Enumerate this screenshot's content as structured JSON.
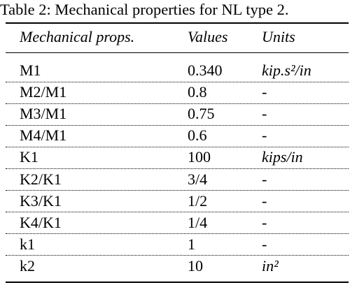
{
  "caption": "Table 2: Mechanical properties for NL type 2.",
  "table": {
    "header": [
      "Mechanical props.",
      "Values",
      "Units"
    ],
    "rows": [
      [
        "M1",
        "0.340",
        "kip.s²/in"
      ],
      [
        "M2/M1",
        "0.8",
        "-"
      ],
      [
        "M3/M1",
        "0.75",
        "-"
      ],
      [
        "M4/M1",
        "0.6",
        "-"
      ],
      [
        "K1",
        "100",
        "kips/in"
      ],
      [
        "K2/K1",
        "3/4",
        "-"
      ],
      [
        "K3/K1",
        "1/2",
        "-"
      ],
      [
        "K4/K1",
        "1/4",
        "-"
      ],
      [
        "k1",
        "1",
        "-"
      ],
      [
        "k2",
        "10",
        "in²"
      ]
    ]
  }
}
